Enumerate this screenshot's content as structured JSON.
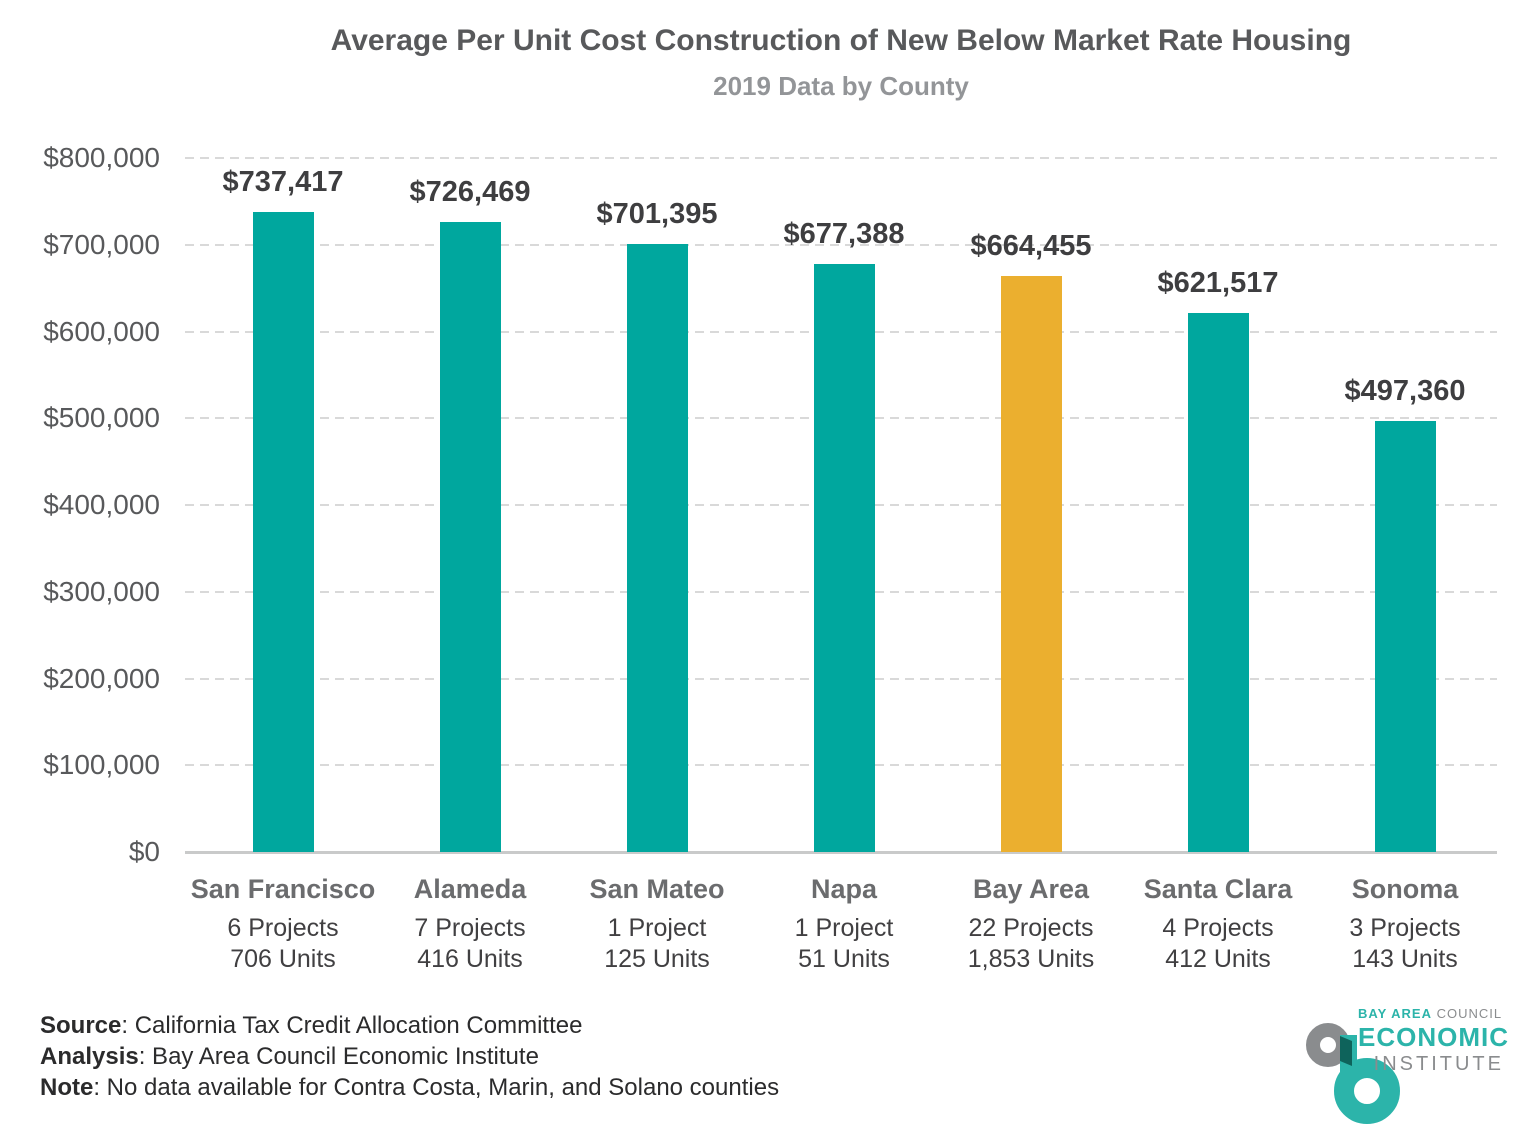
{
  "header": {
    "title": "Average Per Unit Cost Construction of New Below Market Rate Housing",
    "subtitle": "2019 Data by County"
  },
  "chart_data": {
    "type": "bar",
    "title": "Average Per Unit Cost Construction of New Below Market Rate Housing",
    "subtitle": "2019 Data by County",
    "xlabel": "",
    "ylabel": "",
    "ylim": [
      0,
      800000
    ],
    "grid": "horizontal-dashed",
    "legend": "none",
    "y_ticks": [
      {
        "label": "$800,000",
        "value": 800000
      },
      {
        "label": "$700,000",
        "value": 700000
      },
      {
        "label": "$600,000",
        "value": 600000
      },
      {
        "label": "$500,000",
        "value": 500000
      },
      {
        "label": "$400,000",
        "value": 400000
      },
      {
        "label": "$300,000",
        "value": 300000
      },
      {
        "label": "$200,000",
        "value": 200000
      },
      {
        "label": "$100,000",
        "value": 100000
      },
      {
        "label": "$0",
        "value": 0
      }
    ],
    "categories": [
      "San Francisco",
      "Alameda",
      "San Mateo",
      "Napa",
      "Bay Area",
      "Santa Clara",
      "Sonoma"
    ],
    "values": [
      737417,
      726469,
      701395,
      677388,
      664455,
      621517,
      497360
    ],
    "bars": [
      {
        "category": "San Francisco",
        "value": 737417,
        "value_label": "$737,417",
        "projects": "6 Projects",
        "units": "706 Units",
        "color": "#00A79E",
        "highlight": false
      },
      {
        "category": "Alameda",
        "value": 726469,
        "value_label": "$726,469",
        "projects": "7 Projects",
        "units": "416 Units",
        "color": "#00A79E",
        "highlight": false
      },
      {
        "category": "San Mateo",
        "value": 701395,
        "value_label": "$701,395",
        "projects": "1 Project",
        "units": "125 Units",
        "color": "#00A79E",
        "highlight": false
      },
      {
        "category": "Napa",
        "value": 677388,
        "value_label": "$677,388",
        "projects": "1 Project",
        "units": "51 Units",
        "color": "#00A79E",
        "highlight": false
      },
      {
        "category": "Bay Area",
        "value": 664455,
        "value_label": "$664,455",
        "projects": "22 Projects",
        "units": "1,853 Units",
        "color": "#EBAF2F",
        "highlight": true
      },
      {
        "category": "Santa Clara",
        "value": 621517,
        "value_label": "$621,517",
        "projects": "4 Projects",
        "units": "412 Units",
        "color": "#00A79E",
        "highlight": false
      },
      {
        "category": "Sonoma",
        "value": 497360,
        "value_label": "$497,360",
        "projects": "3 Projects",
        "units": "143 Units",
        "color": "#00A79E",
        "highlight": false
      }
    ]
  },
  "footer": {
    "lines": [
      {
        "label": "Source",
        "text": ": California Tax Credit Allocation Committee"
      },
      {
        "label": "Analysis",
        "text": ": Bay Area Council Economic Institute"
      },
      {
        "label": "Note",
        "text": ": No data available for Contra Costa, Marin, and Solano counties"
      }
    ]
  },
  "logo": {
    "org_bold": "BAY AREA",
    "org_rest": " COUNCIL",
    "line2": "ECONOMIC",
    "line3": "INSTITUTE"
  },
  "colors": {
    "bar_teal": "#00A79E",
    "bar_gold": "#EBAF2F",
    "logo_teal": "#2CB4AA",
    "logo_gray": "#8A8C8E",
    "logo_overlap": "#0E635B"
  }
}
